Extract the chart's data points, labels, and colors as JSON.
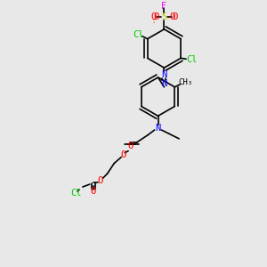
{
  "bg_color": "#e8e8e8",
  "bond_color": "#000000",
  "colors": {
    "N": "#0000ff",
    "O": "#ff0000",
    "Cl": "#00cc00",
    "F": "#ff00ff",
    "S": "#cccc00",
    "C": "#000000"
  },
  "lw": 1.2,
  "lw2": 2.2
}
